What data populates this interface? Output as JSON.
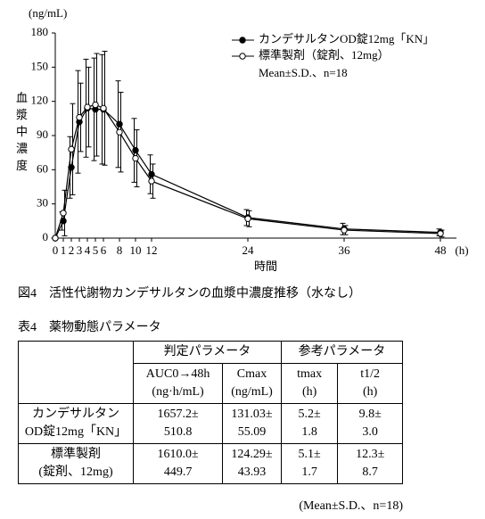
{
  "chart_data": {
    "type": "line",
    "y_unit_label": "(ng/mL)",
    "y_label": "血漿中濃度",
    "x_label": "時間",
    "x_unit_label": "(h)",
    "x": [
      0,
      1,
      2,
      3,
      4,
      5,
      6,
      8,
      10,
      12,
      24,
      36,
      48
    ],
    "xlim": [
      0,
      50
    ],
    "xticks": [
      0,
      1,
      2,
      3,
      4,
      5,
      6,
      8,
      10,
      12,
      24,
      36,
      48
    ],
    "ylim": [
      0,
      180
    ],
    "yticks": [
      0,
      30,
      60,
      90,
      120,
      150,
      180
    ],
    "annotation": "Mean±S.D.、n=18",
    "series": [
      {
        "name": "カンデサルタンOD錠12mg「KN」",
        "color": "#000000",
        "marker_fill": "#000000",
        "values": [
          0,
          15,
          62,
          102,
          114,
          113,
          113,
          100,
          77,
          56,
          18,
          8,
          5
        ],
        "errors": [
          0,
          8,
          27,
          45,
          43,
          45,
          48,
          38,
          28,
          17,
          7,
          5,
          3
        ]
      },
      {
        "name": "標準製剤（錠剤、12mg）",
        "color": "#000000",
        "marker_fill": "#ffffff",
        "values": [
          0,
          22,
          78,
          106,
          115,
          117,
          114,
          93,
          70,
          50,
          17,
          7,
          4
        ],
        "errors": [
          0,
          20,
          40,
          30,
          35,
          45,
          50,
          35,
          25,
          15,
          7,
          4,
          3
        ]
      }
    ]
  },
  "figure_caption": "図4　活性代謝物カンデサルタンの血漿中濃度推移（水なし）",
  "table_caption": "表4　薬物動態パラメータ",
  "table": {
    "group_headers": [
      "判定パラメータ",
      "参考パラメータ"
    ],
    "headers": [
      [
        "AUC0→48h",
        "(ng·h/mL)"
      ],
      [
        "Cmax",
        "(ng/mL)"
      ],
      [
        "tmax",
        "(h)"
      ],
      [
        "t1/2",
        "(h)"
      ]
    ],
    "rows": [
      [
        [
          "カンデサルタン",
          "OD錠12mg「KN」"
        ],
        [
          "1657.2±",
          "510.8"
        ],
        [
          "131.03±",
          "55.09"
        ],
        [
          "5.2±",
          "1.8"
        ],
        [
          "9.8±",
          "3.0"
        ]
      ],
      [
        [
          "標準製剤",
          "(錠剤、12mg)"
        ],
        [
          "1610.0±",
          "449.7"
        ],
        [
          "124.29±",
          "43.93"
        ],
        [
          "5.1±",
          "1.7"
        ],
        [
          "12.3±",
          "8.7"
        ]
      ]
    ]
  },
  "table_note": "(Mean±S.D.、n=18)"
}
